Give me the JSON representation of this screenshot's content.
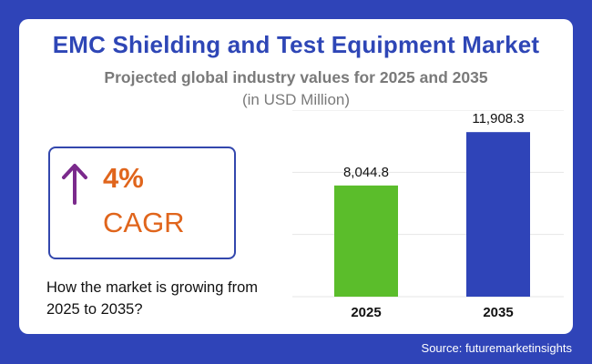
{
  "header": {
    "title": "EMC Shielding and Test Equipment Market",
    "subtitle": "Projected global industry values for 2025 and 2035",
    "unit": "(in USD Million)"
  },
  "cagr": {
    "value": "4%",
    "label": "CAGR",
    "arrow_icon": "arrow-up-icon",
    "arrow_color": "#7b2a8c",
    "accent_color": "#e0651c"
  },
  "question": "How the market is growing from 2025 to 2035?",
  "source": "Source: futuremarketinsights",
  "chart_data": {
    "type": "bar",
    "categories": [
      "2025",
      "2035"
    ],
    "values": [
      8044.8,
      11908.3
    ],
    "value_labels": [
      "8,044.8",
      "11,908.3"
    ],
    "colors": [
      "#5bbd2b",
      "#2f44b8"
    ],
    "ylim": [
      0,
      13500
    ],
    "grid": true
  }
}
